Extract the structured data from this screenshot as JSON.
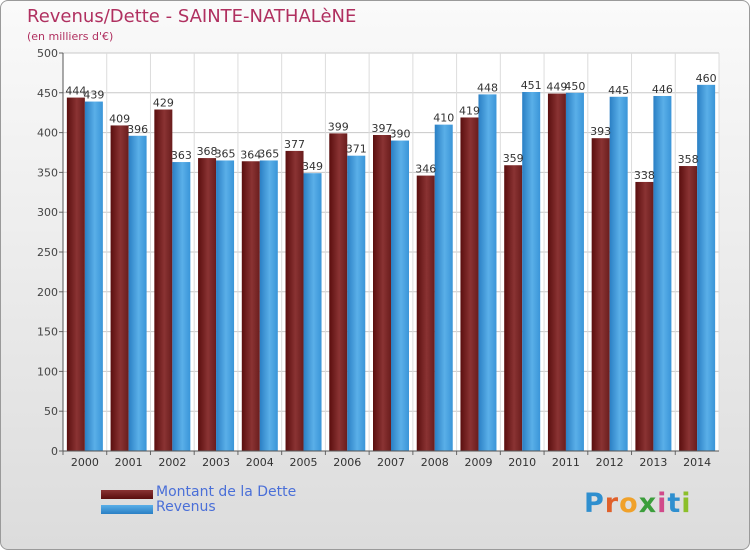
{
  "title": "Revenus/Dette - SAINTE-NATHALèNE",
  "subtitle": "(en milliers d'€)",
  "logo_text": "Proxiti",
  "colors": {
    "dette": "#7a2a2a",
    "revenus": "#3b9ae0",
    "title": "#b03060",
    "legend_text": "#4a6fd8"
  },
  "chart_data": {
    "type": "bar",
    "categories": [
      "2000",
      "2001",
      "2002",
      "2003",
      "2004",
      "2005",
      "2006",
      "2007",
      "2008",
      "2009",
      "2010",
      "2011",
      "2012",
      "2013",
      "2014"
    ],
    "series": [
      {
        "name": "Montant de la Dette",
        "values": [
          444,
          409,
          429,
          368,
          364,
          377,
          399,
          397,
          346,
          419,
          359,
          449,
          393,
          338,
          358
        ]
      },
      {
        "name": "Revenus",
        "values": [
          439,
          396,
          363,
          365,
          365,
          349,
          371,
          390,
          410,
          448,
          451,
          450,
          445,
          446,
          460
        ]
      }
    ],
    "ylim": [
      0,
      500
    ],
    "yticks": [
      0,
      50,
      100,
      150,
      200,
      250,
      300,
      350,
      400,
      450,
      500
    ],
    "grid": true,
    "legend_position": "bottom-left"
  }
}
